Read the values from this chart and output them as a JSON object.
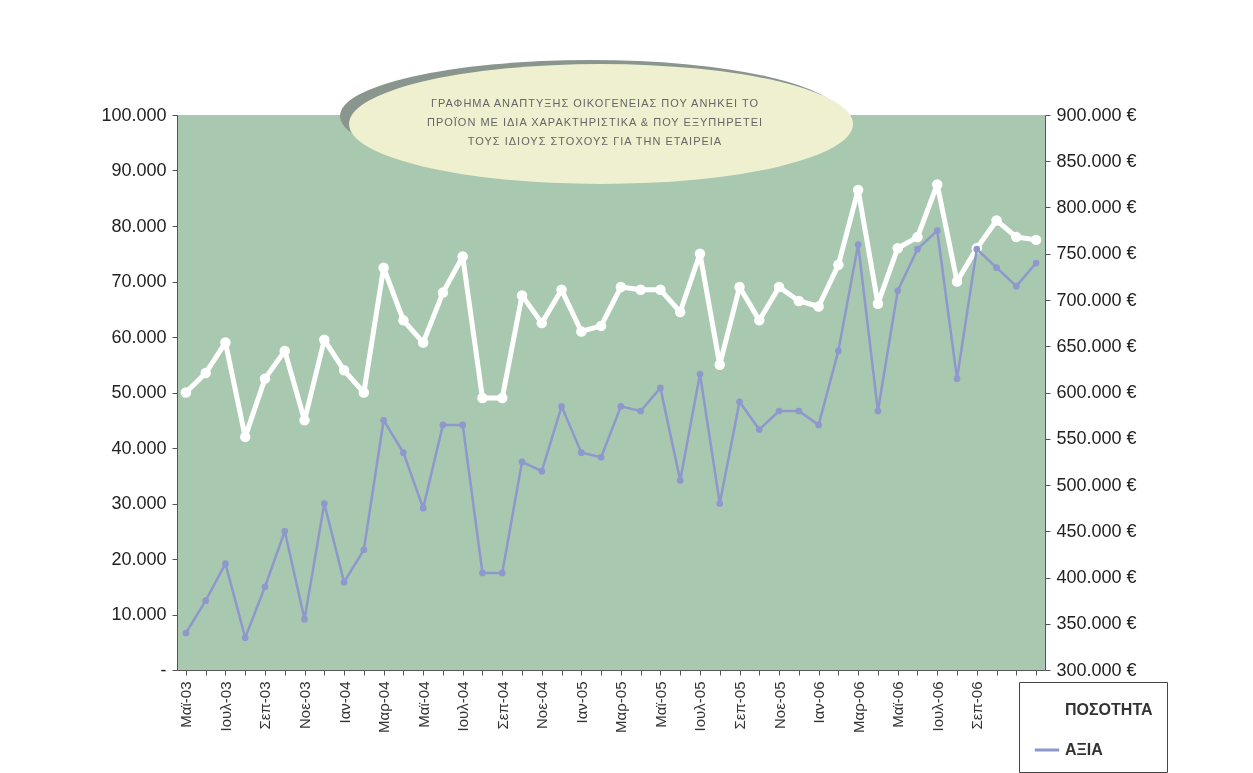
{
  "chart_data": {
    "type": "line",
    "title": "ΓΡΑΦΗΜΑ ΑΝΑΠΤΥΞΗΣ ΟΙΚΟΓΕΝΕΙΑΣ ΠΟΥ ΑΝΗΚΕΙ ΤΟ ΠΡΟΪΟΝ ΜΕ ΙΔΙΑ ΧΑΡΑΚΤΗΡΙΣΤΙΚΑ & ΠΟΥ ΕΞΥΠΗΡΕΤΕΙ ΤΟΥΣ ΙΔΙΟΥΣ ΣΤΟΧΟΥΣ ΓΙΑ ΤΗΝ ΕΤΑΙΡΕΙΑ",
    "categories": [
      "Μαϊ-03",
      null,
      "Ιουλ-03",
      null,
      "Σεπ-03",
      null,
      "Νοε-03",
      null,
      "Ιαν-04",
      null,
      "Μαρ-04",
      null,
      "Μαϊ-04",
      null,
      "Ιουλ-04",
      null,
      "Σεπ-04",
      null,
      "Νοε-04",
      null,
      "Ιαν-05",
      null,
      "Μαρ-05",
      null,
      "Μαϊ-05",
      null,
      "Ιουλ-05",
      null,
      "Σεπ-05",
      null,
      "Νοε-05",
      null,
      "Ιαν-06",
      null,
      "Μαρ-06",
      null,
      "Μαϊ-06",
      null,
      "Ιουλ-06",
      null,
      "Σεπ-06",
      null,
      null,
      null
    ],
    "series": [
      {
        "name": "ΠΟΣΟΤΗΤΑ",
        "color": "#ffffff",
        "values": [
          50000,
          53500,
          59000,
          42000,
          52500,
          57500,
          45000,
          59500,
          54000,
          50000,
          72500,
          63000,
          59000,
          68000,
          74500,
          49000,
          49000,
          67500,
          62500,
          68500,
          61000,
          62000,
          69000,
          68500,
          68500,
          64500,
          75000,
          55000,
          69000,
          63000,
          69000,
          66500,
          65500,
          73000,
          86500,
          66000,
          76000,
          78000,
          87500,
          70000,
          76000,
          81000,
          78000,
          77500
        ]
      },
      {
        "name": "ΑΞΙΑ",
        "color": "#8e98cc",
        "axis": "y2",
        "values": [
          340000,
          375000,
          415000,
          335000,
          390000,
          450000,
          355000,
          480000,
          395000,
          430000,
          570000,
          535000,
          475000,
          565000,
          565000,
          405000,
          405000,
          525000,
          515000,
          585000,
          535000,
          530000,
          585000,
          580000,
          605000,
          505000,
          620000,
          480000,
          590000,
          560000,
          580000,
          580000,
          565000,
          645000,
          760000,
          580000,
          710000,
          755000,
          775000,
          615000,
          755000,
          735000,
          715000,
          740000
        ]
      }
    ],
    "ylim": [
      0,
      100000
    ],
    "yticks": [
      {
        "value": 0,
        "label": "-"
      },
      {
        "value": 10000,
        "label": "10.000"
      },
      {
        "value": 20000,
        "label": "20.000"
      },
      {
        "value": 30000,
        "label": "30.000"
      },
      {
        "value": 40000,
        "label": "40.000"
      },
      {
        "value": 50000,
        "label": "50.000"
      },
      {
        "value": 60000,
        "label": "60.000"
      },
      {
        "value": 70000,
        "label": "70.000"
      },
      {
        "value": 80000,
        "label": "80.000"
      },
      {
        "value": 90000,
        "label": "90.000"
      },
      {
        "value": 100000,
        "label": "100.000"
      }
    ],
    "y2lim": [
      300000,
      900000
    ],
    "y2ticks": [
      {
        "value": 300000,
        "label": "300.000 €"
      },
      {
        "value": 350000,
        "label": "350.000 €"
      },
      {
        "value": 400000,
        "label": "400.000 €"
      },
      {
        "value": 450000,
        "label": "450.000 €"
      },
      {
        "value": 500000,
        "label": "500.000 €"
      },
      {
        "value": 550000,
        "label": "550.000 €"
      },
      {
        "value": 600000,
        "label": "600.000 €"
      },
      {
        "value": 650000,
        "label": "650.000 €"
      },
      {
        "value": 700000,
        "label": "700.000 €"
      },
      {
        "value": 750000,
        "label": "750.000 €"
      },
      {
        "value": 800000,
        "label": "800.000 €"
      },
      {
        "value": 850000,
        "label": "850.000 €"
      },
      {
        "value": 900000,
        "label": "900.000 €"
      }
    ],
    "grid": false,
    "legend": "bottom right",
    "marker": "circle",
    "line_style": "solid"
  }
}
